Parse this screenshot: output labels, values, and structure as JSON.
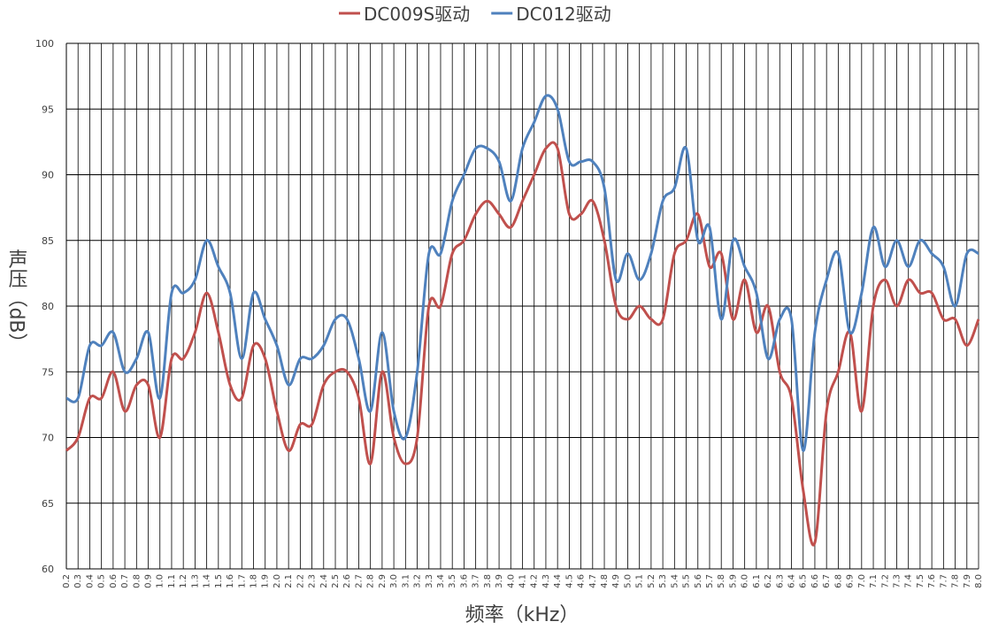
{
  "chart_data": {
    "type": "line",
    "x_label": "频率（kHz）",
    "y_label": "声压（dB）",
    "categories": [
      "0.2",
      "0.3",
      "0.4",
      "0.5",
      "0.6",
      "0.7",
      "0.8",
      "0.9",
      "1.0",
      "1.1",
      "1.2",
      "1.3",
      "1.4",
      "1.5",
      "1.6",
      "1.7",
      "1.8",
      "1.9",
      "2.0",
      "2.1",
      "2.2",
      "2.3",
      "2.4",
      "2.5",
      "2.6",
      "2.7",
      "2.8",
      "2.9",
      "3.0",
      "3.1",
      "3.2",
      "3.3",
      "3.4",
      "3.5",
      "3.6",
      "3.7",
      "3.8",
      "3.9",
      "4.0",
      "4.1",
      "4.2",
      "4.3",
      "4.4",
      "4.5",
      "4.6",
      "4.7",
      "4.8",
      "4.9",
      "5.0",
      "5.1",
      "5.2",
      "5.3",
      "5.4",
      "5.5",
      "5.6",
      "5.7",
      "5.8",
      "5.9",
      "6.0",
      "6.1",
      "6.2",
      "6.3",
      "6.4",
      "6.5",
      "6.6",
      "6.7",
      "6.8",
      "6.9",
      "7.0",
      "7.1",
      "7.2",
      "7.3",
      "7.4",
      "7.5",
      "7.6",
      "7.7",
      "7.8",
      "7.9",
      "8.0"
    ],
    "series": [
      {
        "name": "DC009S驱动",
        "color": "#c0504d",
        "values": [
          69,
          70,
          73,
          73,
          75,
          72,
          74,
          74,
          70,
          76,
          76,
          78,
          81,
          78,
          74,
          73,
          77,
          76,
          72,
          69,
          71,
          71,
          74,
          75,
          75,
          73,
          68,
          75,
          70,
          68,
          70,
          80,
          80,
          84,
          85,
          87,
          88,
          87,
          86,
          88,
          90,
          92,
          92,
          87,
          87,
          88,
          85,
          80,
          79,
          80,
          79,
          79,
          84,
          85,
          87,
          83,
          84,
          79,
          82,
          78,
          80,
          75,
          73,
          66,
          62,
          72,
          75,
          78,
          72,
          80,
          82,
          80,
          82,
          81,
          81,
          79,
          79,
          77,
          79
        ]
      },
      {
        "name": "DC012驱动",
        "color": "#4f81bd",
        "values": [
          73,
          73,
          77,
          77,
          78,
          75,
          76,
          78,
          73,
          81,
          81,
          82,
          85,
          83,
          81,
          76,
          81,
          79,
          77,
          74,
          76,
          76,
          77,
          79,
          79,
          76,
          72,
          78,
          72,
          70,
          75,
          84,
          84,
          88,
          90,
          92,
          92,
          91,
          88,
          92,
          94,
          96,
          95,
          91,
          91,
          91,
          89,
          82,
          84,
          82,
          84,
          88,
          89,
          92,
          85,
          86,
          79,
          85,
          83,
          81,
          76,
          79,
          79,
          69,
          78,
          82,
          84,
          78,
          81,
          86,
          83,
          85,
          83,
          85,
          84,
          83,
          80,
          84,
          84
        ]
      }
    ],
    "ylim": [
      60,
      100
    ],
    "yticks": [
      60,
      65,
      70,
      75,
      80,
      85,
      90,
      95,
      100
    ],
    "grid": true,
    "legend": "top"
  }
}
